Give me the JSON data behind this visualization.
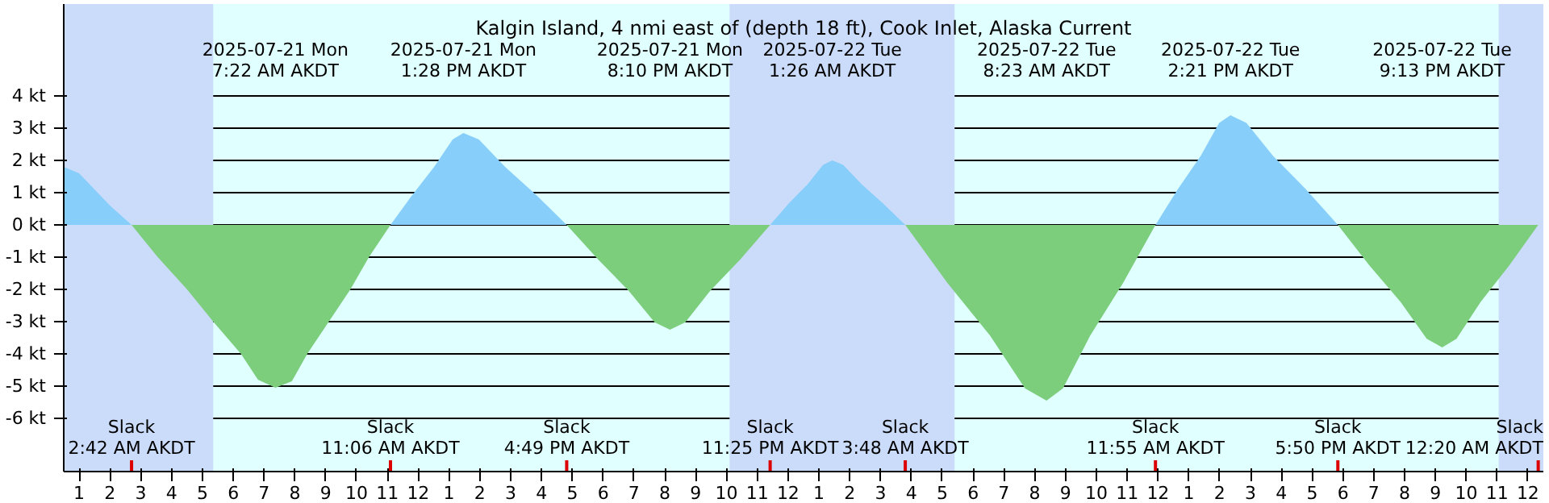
{
  "chart_data": {
    "type": "area",
    "title": "Kalgin Island, 4 nmi east of (depth 18 ft), Cook Inlet, Alaska Current",
    "xlim": [
      "2025-07-21T00:30",
      "2025-07-23T00:30"
    ],
    "ylim": [
      -7.65,
      6.85
    ],
    "xticks": [
      {
        "value": "2025-07-21T01:00",
        "label": "1"
      },
      {
        "value": "2025-07-21T02:00",
        "label": "2"
      },
      {
        "value": "2025-07-21T03:00",
        "label": "3"
      },
      {
        "value": "2025-07-21T04:00",
        "label": "4"
      },
      {
        "value": "2025-07-21T05:00",
        "label": "5"
      },
      {
        "value": "2025-07-21T06:00",
        "label": "6"
      },
      {
        "value": "2025-07-21T07:00",
        "label": "7"
      },
      {
        "value": "2025-07-21T08:00",
        "label": "8"
      },
      {
        "value": "2025-07-21T09:00",
        "label": "9"
      },
      {
        "value": "2025-07-21T10:00",
        "label": "10"
      },
      {
        "value": "2025-07-21T11:00",
        "label": "11"
      },
      {
        "value": "2025-07-21T12:00",
        "label": "12"
      },
      {
        "value": "2025-07-21T13:00",
        "label": "1"
      },
      {
        "value": "2025-07-21T14:00",
        "label": "2"
      },
      {
        "value": "2025-07-21T15:00",
        "label": "3"
      },
      {
        "value": "2025-07-21T16:00",
        "label": "4"
      },
      {
        "value": "2025-07-21T17:00",
        "label": "5"
      },
      {
        "value": "2025-07-21T18:00",
        "label": "6"
      },
      {
        "value": "2025-07-21T19:00",
        "label": "7"
      },
      {
        "value": "2025-07-21T20:00",
        "label": "8"
      },
      {
        "value": "2025-07-21T21:00",
        "label": "9"
      },
      {
        "value": "2025-07-21T22:00",
        "label": "10"
      },
      {
        "value": "2025-07-21T23:00",
        "label": "11"
      },
      {
        "value": "2025-07-22T00:00",
        "label": "12"
      },
      {
        "value": "2025-07-22T01:00",
        "label": "1"
      },
      {
        "value": "2025-07-22T02:00",
        "label": "2"
      },
      {
        "value": "2025-07-22T03:00",
        "label": "3"
      },
      {
        "value": "2025-07-22T04:00",
        "label": "4"
      },
      {
        "value": "2025-07-22T05:00",
        "label": "5"
      },
      {
        "value": "2025-07-22T06:00",
        "label": "6"
      },
      {
        "value": "2025-07-22T07:00",
        "label": "7"
      },
      {
        "value": "2025-07-22T08:00",
        "label": "8"
      },
      {
        "value": "2025-07-22T09:00",
        "label": "9"
      },
      {
        "value": "2025-07-22T10:00",
        "label": "10"
      },
      {
        "value": "2025-07-22T11:00",
        "label": "11"
      },
      {
        "value": "2025-07-22T12:00",
        "label": "12"
      },
      {
        "value": "2025-07-22T13:00",
        "label": "1"
      },
      {
        "value": "2025-07-22T14:00",
        "label": "2"
      },
      {
        "value": "2025-07-22T15:00",
        "label": "3"
      },
      {
        "value": "2025-07-22T16:00",
        "label": "4"
      },
      {
        "value": "2025-07-22T17:00",
        "label": "5"
      },
      {
        "value": "2025-07-22T18:00",
        "label": "6"
      },
      {
        "value": "2025-07-22T19:00",
        "label": "7"
      },
      {
        "value": "2025-07-22T20:00",
        "label": "8"
      },
      {
        "value": "2025-07-22T21:00",
        "label": "9"
      },
      {
        "value": "2025-07-22T22:00",
        "label": "10"
      },
      {
        "value": "2025-07-22T23:00",
        "label": "11"
      },
      {
        "value": "2025-07-23T00:00",
        "label": "12"
      }
    ],
    "yticks": [
      {
        "value": -6,
        "label": "-6 kt"
      },
      {
        "value": -5,
        "label": "-5 kt"
      },
      {
        "value": -4,
        "label": "-4 kt"
      },
      {
        "value": -3,
        "label": "-3 kt"
      },
      {
        "value": -2,
        "label": "-2 kt"
      },
      {
        "value": -1,
        "label": "-1 kt"
      },
      {
        "value": 0,
        "label": "0 kt"
      },
      {
        "value": 1,
        "label": "1 kt"
      },
      {
        "value": 2,
        "label": "2 kt"
      },
      {
        "value": 3,
        "label": "3 kt"
      },
      {
        "value": 4,
        "label": "4 kt"
      }
    ],
    "grid": "y",
    "series": [
      {
        "color": "#87cefa",
        "x": [
          "2025-07-21T00:30",
          "2025-07-21T01:00",
          "2025-07-21T01:30",
          "2025-07-21T02:00",
          "2025-07-21T02:42",
          "2025-07-21T11:06",
          "2025-07-21T11:49",
          "2025-07-21T12:31",
          "2025-07-21T13:07",
          "2025-07-21T13:28",
          "2025-07-21T13:58",
          "2025-07-21T14:49",
          "2025-07-21T15:49",
          "2025-07-21T16:49",
          "2025-07-21T23:25",
          "2025-07-22T00:01",
          "2025-07-22T00:38",
          "2025-07-22T01:08",
          "2025-07-22T01:26",
          "2025-07-22T01:47",
          "2025-07-22T02:23",
          "2025-07-22T03:05",
          "2025-07-22T03:48",
          "2025-07-22T11:55",
          "2025-07-22T12:39",
          "2025-07-22T13:23",
          "2025-07-22T13:59",
          "2025-07-22T14:21",
          "2025-07-22T14:52",
          "2025-07-22T15:44",
          "2025-07-22T16:47",
          "2025-07-22T17:50"
        ],
        "values": [
          1.8,
          1.6,
          1.1,
          0.6,
          0,
          0,
          0.94,
          1.8,
          2.65,
          2.85,
          2.65,
          1.8,
          0.94,
          0,
          0,
          0.66,
          1.26,
          1.86,
          2.0,
          1.86,
          1.26,
          0.66,
          0,
          0,
          1.12,
          2.14,
          3.16,
          3.4,
          3.16,
          2.14,
          1.12,
          0
        ]
      },
      {
        "color": "#7ccd7c",
        "x": [
          "2025-07-21T02:42",
          "2025-07-21T03:33",
          "2025-07-21T04:30",
          "2025-07-21T05:21",
          "2025-07-21T06:15",
          "2025-07-21T06:48",
          "2025-07-21T07:22",
          "2025-07-21T07:54",
          "2025-07-21T08:24",
          "2025-07-21T09:06",
          "2025-07-21T09:48",
          "2025-07-21T10:24",
          "2025-07-21T11:06",
          "2025-07-21T16:49",
          "2025-07-21T17:50",
          "2025-07-21T18:50",
          "2025-07-21T19:40",
          "2025-07-21T20:10",
          "2025-07-21T20:40",
          "2025-07-21T21:28",
          "2025-07-21T22:27",
          "2025-07-21T23:25",
          "2025-07-22T03:48",
          "2025-07-22T05:10",
          "2025-07-22T06:33",
          "2025-07-22T07:41",
          "2025-07-22T08:23",
          "2025-07-22T08:55",
          "2025-07-22T09:48",
          "2025-07-22T10:52",
          "2025-07-22T11:55",
          "2025-07-22T17:50",
          "2025-07-22T18:51",
          "2025-07-22T19:52",
          "2025-07-22T20:43",
          "2025-07-22T21:13",
          "2025-07-22T21:41",
          "2025-07-22T22:28",
          "2025-07-22T23:24",
          "2025-07-23T00:20"
        ],
        "values": [
          0,
          -1,
          -2,
          -3,
          -4,
          -4.8,
          -5.05,
          -4.85,
          -4,
          -3,
          -2,
          -1,
          0,
          0,
          -1.07,
          -2.05,
          -3.02,
          -3.25,
          -3.02,
          -2.05,
          -1.07,
          0,
          0,
          -1.8,
          -3.43,
          -5.07,
          -5.45,
          -5.07,
          -3.43,
          -1.8,
          0,
          0,
          -1.25,
          -2.39,
          -3.53,
          -3.8,
          -3.53,
          -2.39,
          -1.25,
          0
        ]
      }
    ],
    "bands": [
      {
        "axis": "x",
        "from": "2025-07-21T00:30",
        "to": "2025-07-21T05:21",
        "color": "#cadcfa"
      },
      {
        "axis": "x",
        "from": "2025-07-21T22:06",
        "to": "2025-07-22T05:24",
        "color": "#cadcfa"
      },
      {
        "axis": "x",
        "from": "2025-07-22T23:03",
        "to": "2025-07-23T00:30",
        "color": "#cadcfa"
      }
    ],
    "annotations": [
      "2025-07-21 Mon\n7:22 AM AKDT",
      "2025-07-21 Mon\n1:28 PM AKDT",
      "2025-07-21 Mon\n8:10 PM AKDT",
      "2025-07-22 Tue\n1:26 AM AKDT",
      "2025-07-22 Tue\n8:23 AM AKDT",
      "2025-07-22 Tue\n2:21 PM AKDT",
      "2025-07-22 Tue\n9:13 PM AKDT",
      "Slack\n2:42 AM AKDT",
      "Slack\n11:06 AM AKDT",
      "Slack\n4:49 PM AKDT",
      "Slack\n11:25 PM AKDT",
      "Slack\n3:48 AM AKDT",
      "Slack\n11:55 AM AKDT",
      "Slack\n5:50 PM AKDT",
      "Slack\n12:20 AM AKDT"
    ]
  }
}
